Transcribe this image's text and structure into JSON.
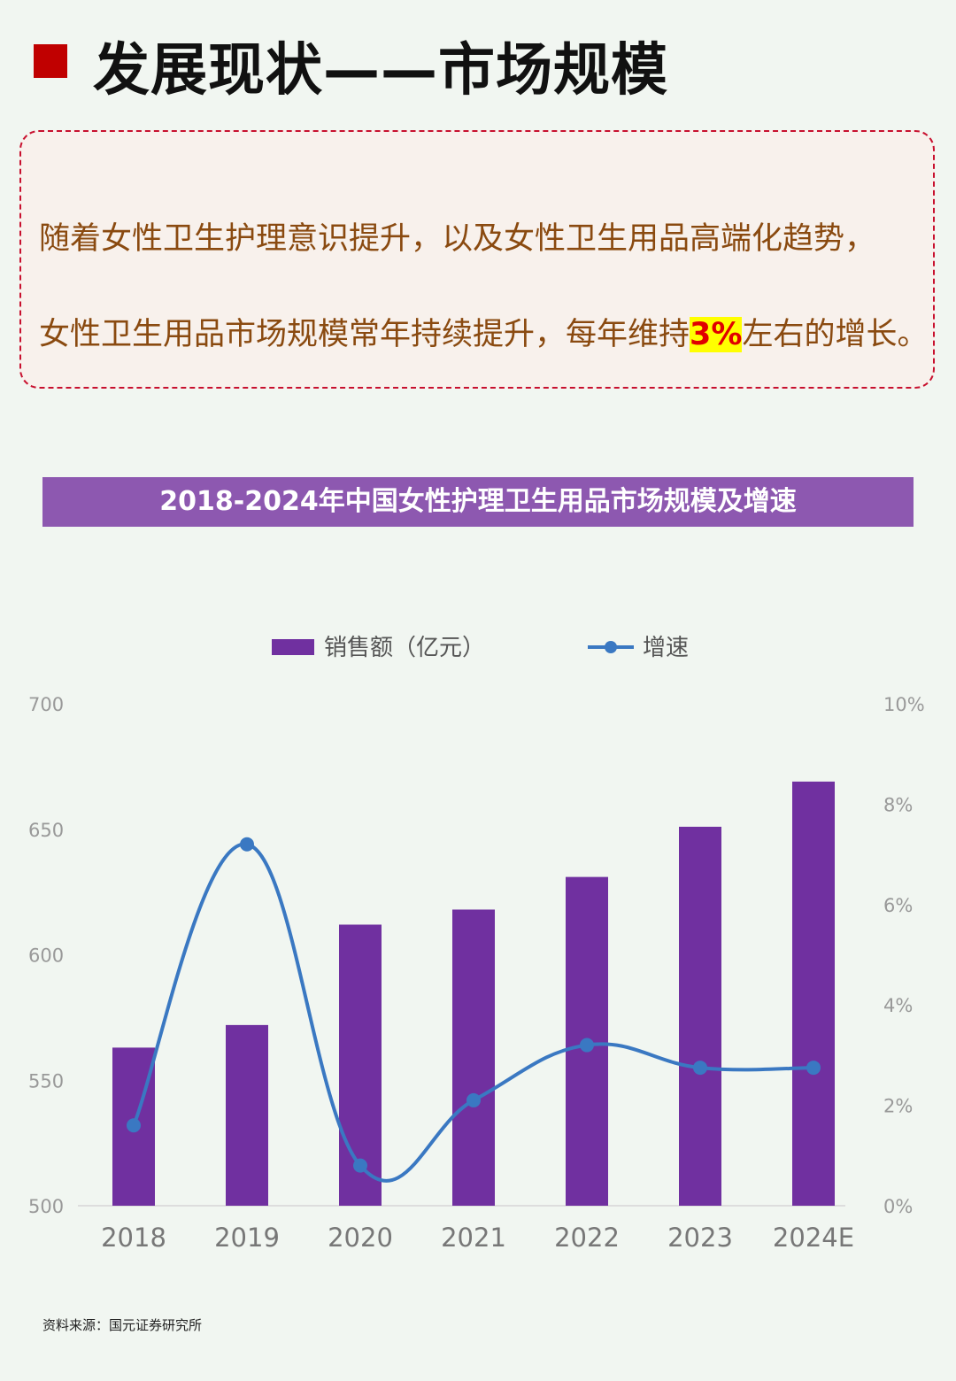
{
  "header": {
    "title": "发展现状——市场规模"
  },
  "summary": {
    "line1": "随着女性卫生护理意识提升，以及女性卫生用品高端化趋势，",
    "line2_before": "女性卫生用品市场规模常年持续提升，每年维持",
    "line2_highlight": "3%",
    "line2_after": "左右的增长。"
  },
  "colors": {
    "accent": "#c00000",
    "bar": "#7030a0",
    "line": "#3a78c2",
    "banner": "#8d58b0"
  },
  "chart_data": {
    "type": "bar+line",
    "title": "2018-2024年中国女性护理卫生用品市场规模及增速",
    "categories": [
      "2018",
      "2019",
      "2020",
      "2021",
      "2022",
      "2023",
      "2024E"
    ],
    "series": [
      {
        "name": "销售额（亿元）",
        "type": "bar",
        "axis": "left",
        "values": [
          563,
          572,
          612,
          618,
          631,
          651,
          669
        ]
      },
      {
        "name": "增速",
        "type": "line",
        "axis": "right",
        "values": [
          1.6,
          7.2,
          0.8,
          2.1,
          3.2,
          2.75,
          2.75
        ]
      }
    ],
    "left_axis": {
      "ylim": [
        500,
        700
      ],
      "ticks": [
        "700",
        "650",
        "600",
        "550",
        "500"
      ]
    },
    "right_axis": {
      "ylim": [
        0,
        10
      ],
      "ticks": [
        "10%",
        "8%",
        "6%",
        "4%",
        "2%",
        "0%"
      ]
    },
    "legend_position": "top",
    "grid": false
  },
  "footer": {
    "source": "资料来源：国元证券研究所"
  }
}
